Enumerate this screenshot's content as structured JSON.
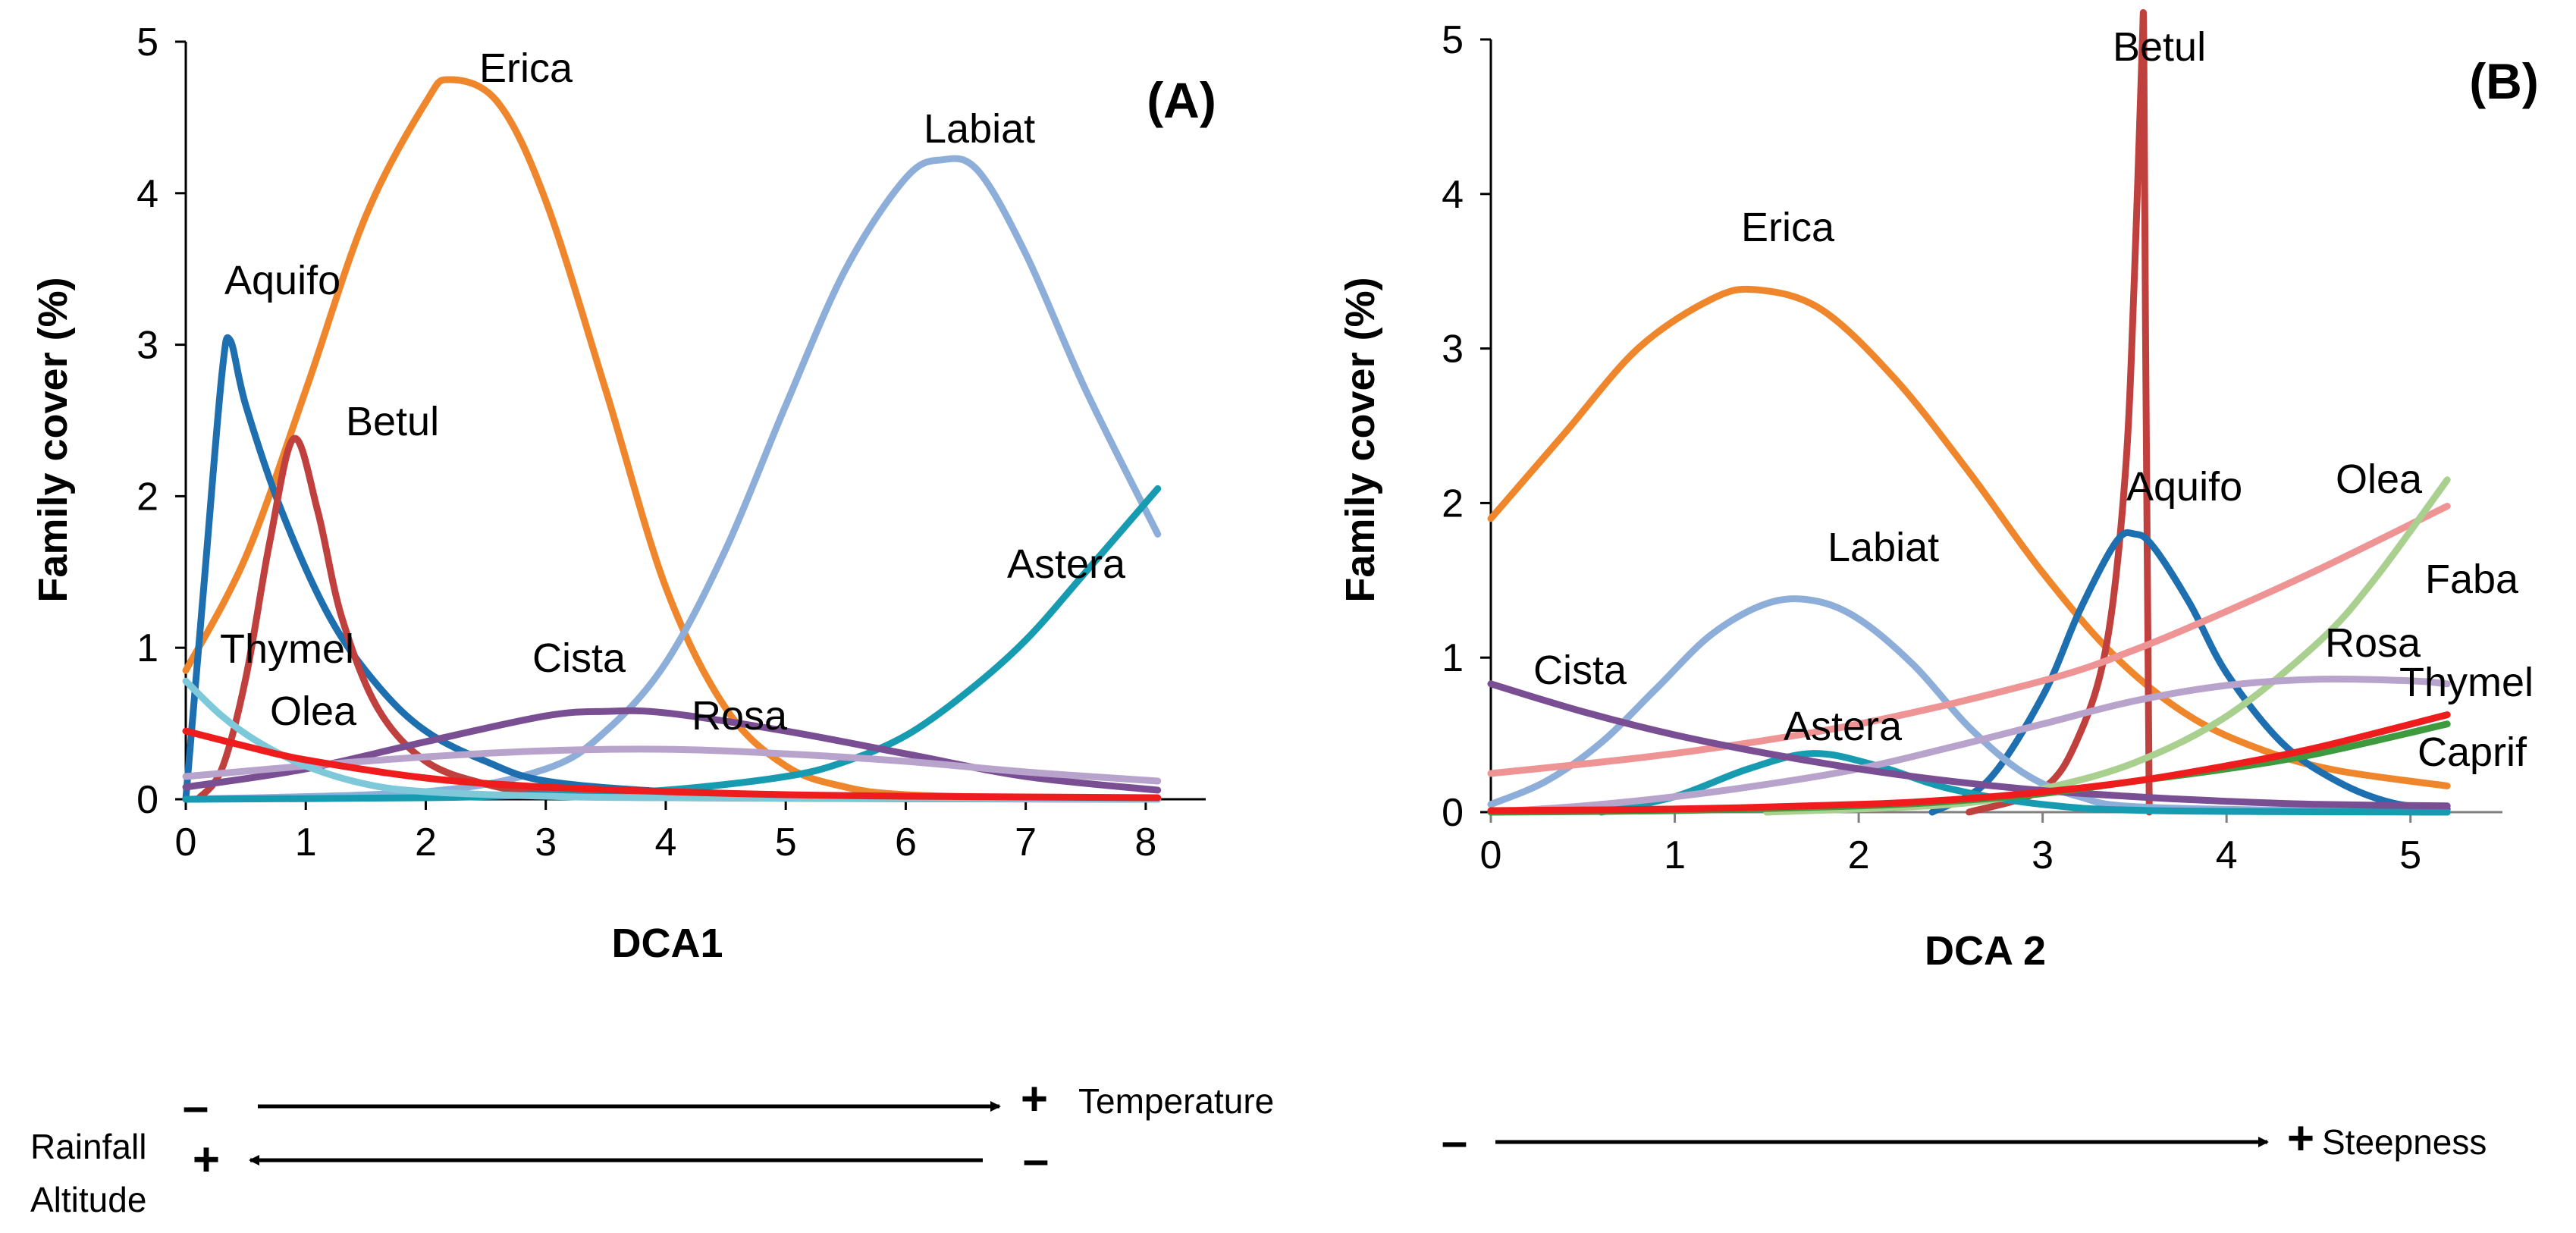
{
  "chart_data": [
    {
      "type": "line",
      "panel_label": "(A)",
      "xlabel": "DCA1",
      "ylabel": "Family cover (%)",
      "xlim": [
        0,
        8.5
      ],
      "ylim": [
        0,
        5
      ],
      "xticks": [
        "0",
        "1",
        "2",
        "3",
        "4",
        "5",
        "6",
        "7",
        "8"
      ],
      "yticks": [
        "0",
        "1",
        "2",
        "3",
        "4",
        "5"
      ],
      "series": [
        {
          "name": "Erica",
          "color": "#F0862B",
          "x": [
            0,
            0.5,
            1,
            1.5,
            2,
            2.2,
            2.6,
            3,
            3.5,
            4,
            4.5,
            5,
            5.5,
            6,
            7,
            8.1
          ],
          "y": [
            0.85,
            1.6,
            2.7,
            3.85,
            4.6,
            4.75,
            4.6,
            3.95,
            2.7,
            1.4,
            0.6,
            0.22,
            0.08,
            0.03,
            0.01,
            0.0
          ]
        },
        {
          "name": "Labiat",
          "color": "#8EAEDA",
          "x": [
            0,
            2,
            3,
            3.5,
            4,
            4.5,
            5,
            5.5,
            6,
            6.3,
            6.6,
            7,
            7.5,
            8.1
          ],
          "y": [
            0.0,
            0.05,
            0.2,
            0.45,
            0.9,
            1.65,
            2.6,
            3.5,
            4.1,
            4.22,
            4.15,
            3.6,
            2.7,
            1.75
          ]
        },
        {
          "name": "Aquifo",
          "color": "#1D6FAF",
          "x": [
            0,
            0.15,
            0.3,
            0.37,
            0.5,
            0.8,
            1.2,
            1.6,
            2,
            2.5,
            3,
            4,
            5,
            8.1
          ],
          "y": [
            0.0,
            1.4,
            2.8,
            3.03,
            2.6,
            1.9,
            1.2,
            0.75,
            0.45,
            0.25,
            0.12,
            0.05,
            0.02,
            0.0
          ]
        },
        {
          "name": "Betul",
          "color": "#C0403E",
          "x": [
            0.1,
            0.3,
            0.5,
            0.7,
            0.9,
            1.1,
            1.3,
            1.6,
            2,
            2.5,
            3,
            4,
            8.1
          ],
          "y": [
            0.0,
            0.2,
            0.8,
            1.7,
            2.38,
            1.9,
            1.2,
            0.6,
            0.25,
            0.1,
            0.04,
            0.01,
            0.0
          ]
        },
        {
          "name": "Astera",
          "color": "#169BB0",
          "x": [
            0,
            2,
            3,
            4,
            5,
            5.5,
            6,
            6.5,
            7,
            7.5,
            8.1
          ],
          "y": [
            0.0,
            0.01,
            0.03,
            0.06,
            0.15,
            0.25,
            0.42,
            0.7,
            1.05,
            1.5,
            2.05
          ]
        },
        {
          "name": "Cista",
          "color": "#7A4E93",
          "x": [
            0,
            1,
            2,
            3,
            3.5,
            4,
            5,
            6,
            7,
            8.1
          ],
          "y": [
            0.08,
            0.2,
            0.38,
            0.55,
            0.58,
            0.57,
            0.45,
            0.3,
            0.15,
            0.06
          ]
        },
        {
          "name": "Rosa",
          "color": "#B8A3CC",
          "x": [
            0,
            1,
            2,
            3,
            4,
            5,
            6,
            7,
            8.1
          ],
          "y": [
            0.15,
            0.22,
            0.28,
            0.32,
            0.33,
            0.3,
            0.25,
            0.18,
            0.12
          ]
        },
        {
          "name": "Thymel",
          "color": "#7DC9DA",
          "x": [
            0,
            0.3,
            0.6,
            1,
            1.5,
            2,
            3,
            4,
            8.1
          ],
          "y": [
            0.78,
            0.55,
            0.38,
            0.22,
            0.1,
            0.05,
            0.02,
            0.01,
            0.0
          ]
        },
        {
          "name": "Olea",
          "color": "#EE1C1C",
          "x": [
            0,
            0.5,
            1,
            2,
            3,
            4,
            5,
            6,
            8.1
          ],
          "y": [
            0.45,
            0.35,
            0.26,
            0.14,
            0.08,
            0.05,
            0.03,
            0.02,
            0.01
          ]
        }
      ],
      "curve_labels": [
        "Erica",
        "Labiat",
        "Aquifo",
        "Betul",
        "Astera",
        "Thymel",
        "Olea",
        "Cista",
        "Rosa"
      ]
    },
    {
      "type": "line",
      "panel_label": "(B)",
      "xlabel": "DCA 2",
      "ylabel": "Family cover (%)",
      "xlim": [
        0,
        5.5
      ],
      "ylim": [
        0,
        5
      ],
      "xticks": [
        "0",
        "1",
        "2",
        "3",
        "4",
        "5"
      ],
      "yticks": [
        "0",
        "1",
        "2",
        "3",
        "4",
        "5"
      ],
      "series": [
        {
          "name": "Erica",
          "color": "#F0862B",
          "x": [
            0,
            0.4,
            0.8,
            1.2,
            1.45,
            1.8,
            2.2,
            2.6,
            3,
            3.4,
            3.8,
            4.2,
            4.6,
            5.2
          ],
          "y": [
            1.9,
            2.45,
            3.0,
            3.32,
            3.38,
            3.25,
            2.8,
            2.2,
            1.55,
            1.0,
            0.62,
            0.4,
            0.27,
            0.17
          ]
        },
        {
          "name": "Betul",
          "color": "#C0403E",
          "x": [
            2.6,
            3.0,
            3.2,
            3.35,
            3.45,
            3.5,
            3.54,
            3.55,
            3.56,
            3.58
          ],
          "y": [
            0.0,
            0.15,
            0.5,
            1.1,
            2.2,
            3.5,
            4.9,
            5.0,
            3.0,
            0.0
          ]
        },
        {
          "name": "Aquifo",
          "color": "#1D6FAF",
          "x": [
            2.4,
            2.7,
            3.0,
            3.2,
            3.4,
            3.5,
            3.6,
            3.8,
            4.0,
            4.3,
            4.6,
            4.9,
            5.2
          ],
          "y": [
            0.0,
            0.2,
            0.75,
            1.3,
            1.75,
            1.8,
            1.72,
            1.35,
            0.9,
            0.45,
            0.2,
            0.06,
            0.02
          ]
        },
        {
          "name": "Labiat",
          "color": "#8EAEDA",
          "x": [
            0,
            0.3,
            0.6,
            0.9,
            1.2,
            1.5,
            1.75,
            2.0,
            2.3,
            2.6,
            2.9,
            3.2,
            3.6,
            5.2
          ],
          "y": [
            0.05,
            0.2,
            0.45,
            0.8,
            1.15,
            1.35,
            1.37,
            1.25,
            0.95,
            0.55,
            0.25,
            0.1,
            0.03,
            0.0
          ]
        },
        {
          "name": "Astera",
          "color": "#169BB0",
          "x": [
            0.6,
            1.0,
            1.4,
            1.75,
            2.1,
            2.5,
            3.0,
            3.6,
            5.2
          ],
          "y": [
            0.0,
            0.1,
            0.28,
            0.38,
            0.3,
            0.15,
            0.05,
            0.01,
            0.0
          ]
        },
        {
          "name": "Olea",
          "color": "#EE9495",
          "x": [
            0,
            1,
            2,
            3,
            3.5,
            4,
            4.5,
            5.2
          ],
          "y": [
            0.25,
            0.38,
            0.57,
            0.85,
            1.05,
            1.3,
            1.57,
            1.98
          ]
        },
        {
          "name": "Faba",
          "color": "#A9D08E",
          "x": [
            1.5,
            2.5,
            3,
            3.5,
            4,
            4.5,
            4.8,
            5.2
          ],
          "y": [
            0.0,
            0.05,
            0.15,
            0.32,
            0.62,
            1.1,
            1.5,
            2.15
          ]
        },
        {
          "name": "Rosa",
          "color": "#B8A3CC",
          "x": [
            0,
            0.5,
            1,
            1.5,
            2,
            2.5,
            3,
            3.5,
            4,
            4.5,
            5,
            5.2
          ],
          "y": [
            0.0,
            0.04,
            0.1,
            0.18,
            0.28,
            0.42,
            0.57,
            0.72,
            0.82,
            0.86,
            0.85,
            0.83
          ]
        },
        {
          "name": "Cista",
          "color": "#7A4E93",
          "x": [
            0,
            0.5,
            1,
            1.5,
            2,
            2.5,
            3,
            3.5,
            4,
            4.5,
            5.2
          ],
          "y": [
            0.83,
            0.65,
            0.5,
            0.38,
            0.28,
            0.2,
            0.14,
            0.1,
            0.07,
            0.05,
            0.04
          ]
        },
        {
          "name": "Caprif",
          "color": "#3E9A3E",
          "x": [
            0,
            1,
            2,
            2.5,
            3,
            3.5,
            4,
            4.5,
            5.2
          ],
          "y": [
            0.0,
            0.01,
            0.04,
            0.07,
            0.12,
            0.2,
            0.28,
            0.38,
            0.57
          ]
        },
        {
          "name": "Thymel",
          "color": "#EE1C1C",
          "x": [
            0,
            1,
            2,
            2.5,
            3,
            3.5,
            4,
            4.5,
            5.2
          ],
          "y": [
            0.01,
            0.02,
            0.05,
            0.08,
            0.13,
            0.2,
            0.3,
            0.42,
            0.63
          ]
        }
      ],
      "curve_labels": [
        "Betul",
        "Erica",
        "Aquifo",
        "Olea",
        "Labiat",
        "Faba",
        "Cista",
        "Rosa",
        "Thymel",
        "Astera",
        "Caprif"
      ]
    }
  ],
  "gradients": {
    "left": {
      "top_minus": "–",
      "top_plus": "+",
      "top_label": "Temperature",
      "bottom_label_1": "Rainfall",
      "bottom_label_2": "Altitude",
      "bottom_plus": "+",
      "bottom_minus": "–"
    },
    "right": {
      "minus": "–",
      "plus": "+",
      "label": "Steepness"
    }
  }
}
